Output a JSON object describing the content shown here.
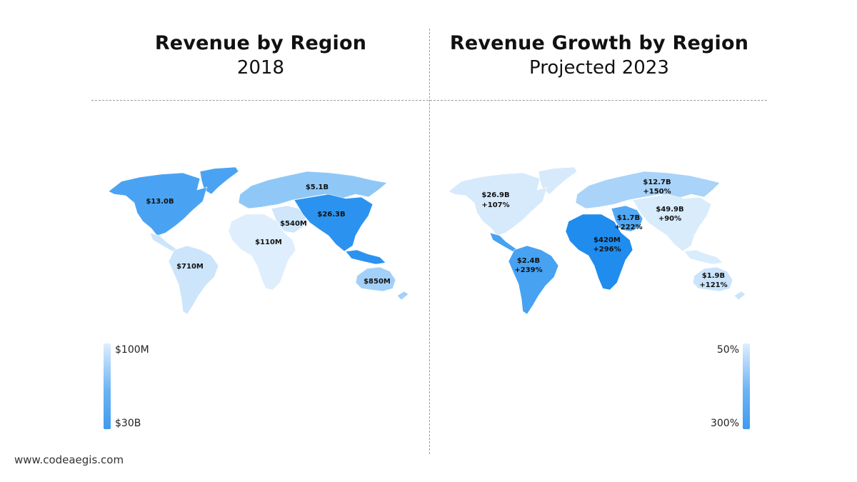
{
  "left_panel": {
    "title": "Revenue by Region",
    "subtitle": "2018",
    "regions": [
      {
        "name": "North America",
        "label": "$13.0B",
        "color": "#4aa3f2"
      },
      {
        "name": "Russia",
        "label": "$5.1B",
        "color": "#8fc8f7"
      },
      {
        "name": "Asia",
        "label": "$26.3B",
        "color": "#2b93ef"
      },
      {
        "name": "Middle East",
        "label": "$540M",
        "color": "#cfe6fb"
      },
      {
        "name": "Africa",
        "label": "$110M",
        "color": "#deeefc"
      },
      {
        "name": "South America",
        "label": "$710M",
        "color": "#cde5fb"
      },
      {
        "name": "Australia",
        "label": "$850M",
        "color": "#a3d0f8"
      }
    ],
    "legend": {
      "top_label": "$100M",
      "bottom_label": "$30B"
    }
  },
  "right_panel": {
    "title": "Revenue Growth  by Region",
    "subtitle": "Projected 2023",
    "regions": [
      {
        "name": "North America",
        "amount": "$26.9B",
        "growth": "+107%",
        "color": "#d6eafc"
      },
      {
        "name": "Russia",
        "amount": "$12.7B",
        "growth": "+150%",
        "color": "#a9d3f8"
      },
      {
        "name": "Asia",
        "amount": "$49.9B",
        "growth": "+90%",
        "color": "#d9ecfc"
      },
      {
        "name": "Middle East",
        "amount": "$1.7B",
        "growth": "+222%",
        "color": "#52a8f3"
      },
      {
        "name": "Africa",
        "amount": "$420M",
        "growth": "+296%",
        "color": "#1f8cee"
      },
      {
        "name": "South America",
        "amount": "$2.4B",
        "growth": "+239%",
        "color": "#47a2f2"
      },
      {
        "name": "Australia",
        "amount": "$1.9B",
        "growth": "+121%",
        "color": "#cbe4fb"
      }
    ],
    "legend": {
      "top_label": "50%",
      "bottom_label": "300%"
    }
  },
  "footer": {
    "website": "www.codeaegis.com"
  }
}
